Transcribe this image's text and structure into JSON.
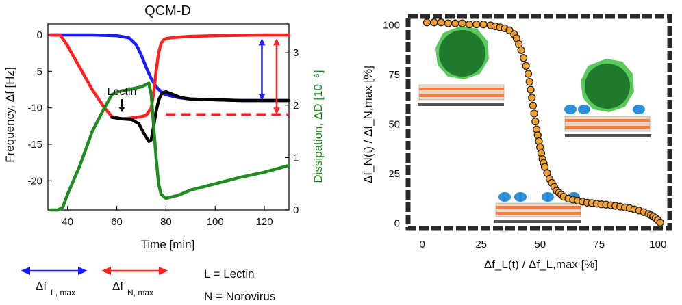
{
  "left_chart": {
    "title": "QCM-D",
    "xlabel": "Time [min]",
    "ylabel_left": "Frequency, Δf [Hz]",
    "ylabel_right": "Dissipation, ΔD [10⁻⁶]",
    "annotation": "Lectin",
    "xticks": [
      "40",
      "60",
      "80",
      "100",
      "120"
    ],
    "yticks_left": [
      "0",
      "-5",
      "-10",
      "-15",
      "-20"
    ],
    "yticks_right": [
      "0",
      "1",
      "2",
      "3"
    ]
  },
  "right_chart": {
    "xlabel": "Δf_L(t) / Δf_L,max [%]",
    "ylabel": "Δf_N(t) / Δf_N,max [%]",
    "xticks": [
      "0",
      "25",
      "50",
      "75",
      "100"
    ],
    "yticks": [
      "0",
      "25",
      "50",
      "75",
      "100"
    ]
  },
  "legend": {
    "blue_label": "Δf",
    "blue_sub": "L, max",
    "red_label": "Δf",
    "red_sub": "N, max",
    "def_L": "L = Lectin",
    "def_N": "N = Norovirus"
  },
  "colors": {
    "blue": "#1a1aff",
    "red": "#ff2020",
    "black": "#000000",
    "green": "#1e8c1e",
    "orange": "#f5a030",
    "virus": "#1f7a2e"
  },
  "chart_data": [
    {
      "type": "line",
      "title": "QCM-D",
      "xlabel": "Time [min]",
      "ylabel": "Frequency, Δf [Hz]",
      "y2label": "Dissipation, ΔD [10⁻⁶]",
      "xlim": [
        32,
        130
      ],
      "ylim": [
        -24,
        1.5
      ],
      "y2lim": [
        0,
        3.55
      ],
      "series": [
        {
          "color": "blue",
          "axis": "left",
          "x": [
            33,
            40,
            50,
            60,
            65,
            68,
            70,
            72,
            74,
            76,
            78,
            80,
            85,
            90,
            100,
            110,
            120,
            130
          ],
          "y": [
            0,
            0,
            0,
            -0.1,
            -0.4,
            -1.4,
            -2.8,
            -4.5,
            -6,
            -7.1,
            -7.8,
            -8.2,
            -8.6,
            -8.8,
            -8.9,
            -9,
            -9,
            -9
          ]
        },
        {
          "color": "red",
          "axis": "left",
          "x": [
            33,
            37,
            40,
            45,
            50,
            55,
            58,
            62,
            66,
            70,
            72,
            74,
            75,
            76,
            77,
            78,
            79,
            80,
            82,
            85,
            90,
            100,
            110,
            120,
            130
          ],
          "y": [
            0,
            0,
            -1.5,
            -4.5,
            -7.5,
            -10,
            -11.2,
            -11.5,
            -11.4,
            -11.2,
            -11,
            -10,
            -8,
            -5,
            -2.5,
            -1.2,
            -0.7,
            -0.5,
            -0.4,
            -0.3,
            -0.2,
            -0.1,
            -0.05,
            0,
            0
          ]
        },
        {
          "color": "black",
          "axis": "left",
          "x": [
            58,
            62,
            66,
            69,
            71,
            73,
            74,
            75,
            76,
            77,
            78,
            79,
            80,
            83,
            86,
            90,
            100,
            110,
            120,
            130
          ],
          "y": [
            -11.3,
            -11.5,
            -11.6,
            -12.2,
            -13.5,
            -14.6,
            -14.4,
            -12.5,
            -10.5,
            -9,
            -8.2,
            -7.9,
            -7.8,
            -8.2,
            -8.6,
            -8.8,
            -8.9,
            -9,
            -9,
            -9
          ]
        },
        {
          "color": "green",
          "axis": "right",
          "x": [
            33,
            36,
            38,
            40,
            45,
            50,
            55,
            58,
            60,
            65,
            70,
            73,
            74,
            75,
            76,
            77,
            78,
            80,
            85,
            90,
            100,
            110,
            120,
            130
          ],
          "y": [
            0,
            0,
            0.05,
            0.3,
            0.85,
            1.5,
            1.95,
            2.2,
            2.25,
            2.3,
            2.35,
            2.42,
            2.2,
            1.6,
            1.0,
            0.5,
            0.3,
            0.22,
            0.28,
            0.38,
            0.5,
            0.62,
            0.72,
            0.85
          ]
        }
      ],
      "dashed_reference": {
        "y": -10.9,
        "x": [
          80,
          130
        ]
      },
      "arrows": [
        {
          "color": "blue",
          "x": 119,
          "y": [
            -0.5,
            -9.0
          ]
        },
        {
          "color": "red",
          "x": 125,
          "y": [
            -0.5,
            -10.9
          ]
        }
      ]
    },
    {
      "type": "scatter",
      "xlabel": "Δf_L(t) / Δf_L,max [%]",
      "ylabel": "Δf_N(t) / Δf_N,max [%]",
      "xlim": [
        -6,
        105
      ],
      "ylim": [
        -3,
        104
      ],
      "x": [
        2,
        5,
        8,
        11,
        14,
        17,
        20,
        23,
        26,
        29,
        31,
        33,
        35,
        37,
        39,
        40,
        41,
        42,
        43,
        44,
        45,
        45.5,
        46,
        46.5,
        47,
        47.5,
        48,
        48.5,
        49,
        49.5,
        50,
        50.5,
        51,
        51.5,
        52,
        53,
        54,
        55,
        56,
        57,
        58,
        59,
        60,
        62,
        64,
        66,
        68,
        70,
        72,
        74,
        76,
        78,
        80,
        82,
        84,
        86,
        88,
        90,
        92,
        94,
        96,
        97,
        98,
        99,
        100,
        101
      ],
      "y": [
        101,
        101,
        101,
        100.5,
        100.5,
        100.5,
        100,
        100,
        100,
        99.5,
        99,
        98.5,
        98,
        97,
        95,
        93,
        90,
        87,
        83,
        79,
        75,
        71,
        67,
        63,
        59,
        55,
        51,
        47,
        44,
        41,
        38,
        35,
        32,
        30,
        28,
        25,
        22,
        20,
        18,
        16,
        15,
        14,
        13,
        12,
        11.5,
        11,
        10.5,
        10,
        9.8,
        9.5,
        9.2,
        9,
        8.7,
        8.4,
        8,
        7.6,
        7.2,
        6.6,
        6,
        5.2,
        4.3,
        3.7,
        3,
        2.2,
        1.2,
        0
      ]
    }
  ]
}
